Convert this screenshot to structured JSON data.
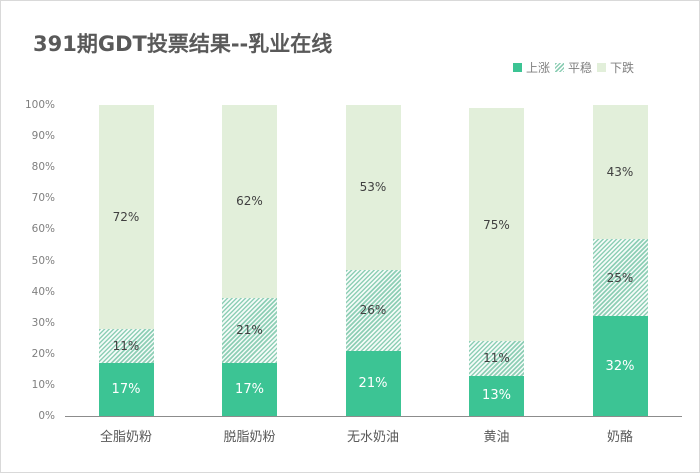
{
  "chart_data": {
    "type": "bar",
    "stacked": true,
    "percent": true,
    "title": "391期GDT投票结果--乳业在线",
    "xlabel": "",
    "ylabel": "",
    "ylim": [
      0,
      100
    ],
    "yticks": [
      "0%",
      "10%",
      "20%",
      "30%",
      "40%",
      "50%",
      "60%",
      "70%",
      "80%",
      "90%",
      "100%"
    ],
    "legend_position": "top-right",
    "grid": false,
    "categories": [
      "全脂奶粉",
      "脱脂奶粉",
      "无水奶油",
      "黄油",
      "奶酪"
    ],
    "series": [
      {
        "name": "上涨",
        "color": "#3cc494",
        "pattern": "solid",
        "values": [
          17,
          17,
          21,
          13,
          32
        ]
      },
      {
        "name": "平稳",
        "color": "#8fcfb6",
        "pattern": "diagonal-hatch",
        "values": [
          11,
          21,
          26,
          11,
          25
        ]
      },
      {
        "name": "下跌",
        "color": "#e2efda",
        "pattern": "solid",
        "values": [
          72,
          62,
          53,
          75,
          43
        ]
      }
    ]
  },
  "labels": {
    "up": [
      "17%",
      "17%",
      "21%",
      "13%",
      "32%"
    ],
    "flat": [
      "11%",
      "21%",
      "26%",
      "11%",
      "25%"
    ],
    "down": [
      "72%",
      "62%",
      "53%",
      "75%",
      "43%"
    ]
  }
}
